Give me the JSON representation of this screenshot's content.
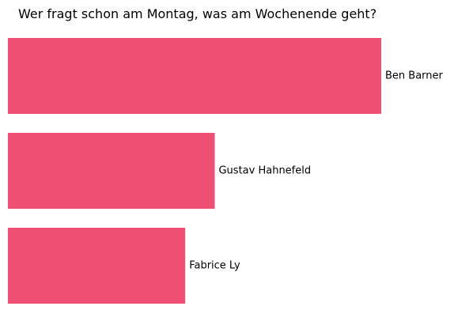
{
  "chart_data": {
    "type": "bar",
    "orientation": "horizontal",
    "title": "Wer fragt schon am Montag, was am Wochenende geht?",
    "categories": [
      "Ben Barner",
      "Gustav Hahnefeld",
      "Fabrice Ly"
    ],
    "values": [
      100,
      55.4,
      47.5
    ],
    "bar_color": "#ef4f72",
    "axes_visible": false,
    "grid": false,
    "legend": "none"
  }
}
